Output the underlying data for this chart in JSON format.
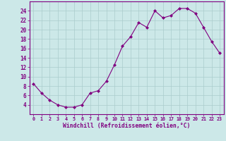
{
  "x": [
    0,
    1,
    2,
    3,
    4,
    5,
    6,
    7,
    8,
    9,
    10,
    11,
    12,
    13,
    14,
    15,
    16,
    17,
    18,
    19,
    20,
    21,
    22,
    23
  ],
  "y": [
    8.5,
    6.5,
    5.0,
    4.0,
    3.5,
    3.5,
    4.0,
    6.5,
    7.0,
    9.0,
    12.5,
    16.5,
    18.5,
    21.5,
    20.5,
    24.0,
    22.5,
    23.0,
    24.5,
    24.5,
    23.5,
    20.5,
    17.5,
    15.0
  ],
  "line_color": "#800080",
  "marker": "D",
  "marker_size": 2,
  "bg_color": "#cce8e8",
  "grid_color": "#aacccc",
  "xlabel": "Windchill (Refroidissement éolien,°C)",
  "xlim": [
    -0.5,
    23.5
  ],
  "ylim": [
    2,
    26
  ],
  "yticks": [
    4,
    6,
    8,
    10,
    12,
    14,
    16,
    18,
    20,
    22,
    24
  ],
  "xticks": [
    0,
    1,
    2,
    3,
    4,
    5,
    6,
    7,
    8,
    9,
    10,
    11,
    12,
    13,
    14,
    15,
    16,
    17,
    18,
    19,
    20,
    21,
    22,
    23
  ],
  "xtick_labels": [
    "0",
    "1",
    "2",
    "3",
    "4",
    "5",
    "6",
    "7",
    "8",
    "9",
    "10",
    "11",
    "12",
    "13",
    "14",
    "15",
    "16",
    "17",
    "18",
    "19",
    "20",
    "21",
    "22",
    "23"
  ],
  "label_color": "#800080",
  "tick_color": "#800080",
  "spine_color": "#800080",
  "xtick_fontsize": 4.8,
  "ytick_fontsize": 5.5,
  "xlabel_fontsize": 5.8
}
